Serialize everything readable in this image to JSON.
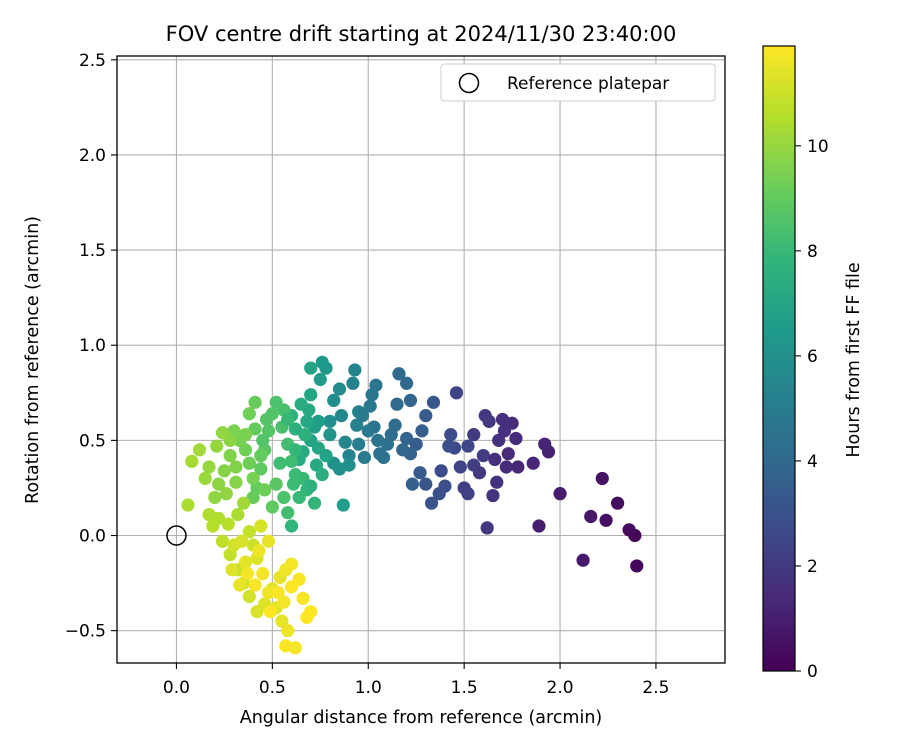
{
  "chart_data": {
    "type": "scatter",
    "title": "FOV centre drift starting at 2024/11/30 23:40:00",
    "xlabel": "Angular distance from reference (arcmin)",
    "ylabel": "Rotation from reference (arcmin)",
    "xlim": [
      -0.31,
      2.86
    ],
    "ylim": [
      -0.67,
      2.52
    ],
    "xticks": [
      "0.0",
      "0.5",
      "1.0",
      "1.5",
      "2.0",
      "2.5"
    ],
    "yticks": [
      "−0.5",
      "0.0",
      "0.5",
      "1.0",
      "1.5",
      "2.0",
      "2.5"
    ],
    "grid": true,
    "legend": {
      "position": "top-right",
      "entries": [
        "Reference platepar"
      ]
    },
    "reference_point": {
      "label": "Reference platepar",
      "x": 0.0,
      "y": 0.0
    },
    "colorbar": {
      "label": "Hours from first FF file",
      "colormap": "viridis",
      "range": [
        0,
        11.9
      ],
      "ticks": [
        "0",
        "2",
        "4",
        "6",
        "8",
        "10"
      ]
    },
    "series": [
      {
        "value_label": "Hours from first FF file",
        "points": [
          {
            "x": 2.39,
            "y": 0.0,
            "c": 0.1
          },
          {
            "x": 2.4,
            "y": -0.16,
            "c": 0.2
          },
          {
            "x": 2.36,
            "y": 0.03,
            "c": 0.3
          },
          {
            "x": 2.3,
            "y": 0.17,
            "c": 0.4
          },
          {
            "x": 2.24,
            "y": 0.08,
            "c": 0.5
          },
          {
            "x": 2.22,
            "y": 0.3,
            "c": 0.6
          },
          {
            "x": 2.16,
            "y": 0.1,
            "c": 0.7
          },
          {
            "x": 2.12,
            "y": -0.13,
            "c": 0.8
          },
          {
            "x": 2.0,
            "y": 0.22,
            "c": 0.9
          },
          {
            "x": 1.89,
            "y": 0.05,
            "c": 1.0
          },
          {
            "x": 1.94,
            "y": 0.44,
            "c": 1.1
          },
          {
            "x": 1.92,
            "y": 0.48,
            "c": 1.2
          },
          {
            "x": 1.86,
            "y": 0.38,
            "c": 1.3
          },
          {
            "x": 1.77,
            "y": 0.51,
            "c": 1.4
          },
          {
            "x": 1.73,
            "y": 0.43,
            "c": 1.4
          },
          {
            "x": 1.75,
            "y": 0.59,
            "c": 1.5
          },
          {
            "x": 1.7,
            "y": 0.61,
            "c": 1.6
          },
          {
            "x": 1.68,
            "y": 0.5,
            "c": 1.7
          },
          {
            "x": 1.67,
            "y": 0.28,
            "c": 1.7
          },
          {
            "x": 1.65,
            "y": 0.21,
            "c": 1.8
          },
          {
            "x": 1.62,
            "y": 0.04,
            "c": 1.9
          },
          {
            "x": 1.63,
            "y": 0.6,
            "c": 2.0
          },
          {
            "x": 1.61,
            "y": 0.63,
            "c": 2.0
          },
          {
            "x": 1.6,
            "y": 0.42,
            "c": 2.1
          },
          {
            "x": 1.55,
            "y": 0.37,
            "c": 2.2
          },
          {
            "x": 1.52,
            "y": 0.22,
            "c": 2.3
          },
          {
            "x": 1.5,
            "y": 0.25,
            "c": 2.3
          },
          {
            "x": 1.48,
            "y": 0.36,
            "c": 2.4
          },
          {
            "x": 1.46,
            "y": 0.75,
            "c": 2.5
          },
          {
            "x": 1.52,
            "y": 0.47,
            "c": 2.6
          },
          {
            "x": 1.45,
            "y": 0.46,
            "c": 2.7
          },
          {
            "x": 1.43,
            "y": 0.53,
            "c": 2.8
          },
          {
            "x": 1.42,
            "y": 0.47,
            "c": 2.9
          },
          {
            "x": 1.4,
            "y": 0.26,
            "c": 2.9
          },
          {
            "x": 1.37,
            "y": 0.22,
            "c": 3.0
          },
          {
            "x": 1.33,
            "y": 0.17,
            "c": 3.1
          },
          {
            "x": 1.3,
            "y": 0.27,
            "c": 3.2
          },
          {
            "x": 1.34,
            "y": 0.7,
            "c": 3.3
          },
          {
            "x": 1.3,
            "y": 0.63,
            "c": 3.4
          },
          {
            "x": 1.28,
            "y": 0.55,
            "c": 3.5
          },
          {
            "x": 1.25,
            "y": 0.48,
            "c": 3.5
          },
          {
            "x": 1.23,
            "y": 0.27,
            "c": 3.6
          },
          {
            "x": 1.22,
            "y": 0.43,
            "c": 3.7
          },
          {
            "x": 1.2,
            "y": 0.51,
            "c": 3.8
          },
          {
            "x": 1.22,
            "y": 0.71,
            "c": 3.9
          },
          {
            "x": 1.2,
            "y": 0.8,
            "c": 4.0
          },
          {
            "x": 1.16,
            "y": 0.85,
            "c": 4.1
          },
          {
            "x": 1.15,
            "y": 0.69,
            "c": 4.1
          },
          {
            "x": 1.14,
            "y": 0.58,
            "c": 4.2
          },
          {
            "x": 1.12,
            "y": 0.53,
            "c": 4.3
          },
          {
            "x": 1.1,
            "y": 0.48,
            "c": 4.4
          },
          {
            "x": 1.08,
            "y": 0.41,
            "c": 4.5
          },
          {
            "x": 1.05,
            "y": 0.5,
            "c": 4.6
          },
          {
            "x": 1.03,
            "y": 0.57,
            "c": 4.6
          },
          {
            "x": 1.04,
            "y": 0.79,
            "c": 4.7
          },
          {
            "x": 1.02,
            "y": 0.74,
            "c": 4.8
          },
          {
            "x": 1.0,
            "y": 0.55,
            "c": 4.9
          },
          {
            "x": 0.98,
            "y": 0.41,
            "c": 5.0
          },
          {
            "x": 0.95,
            "y": 0.48,
            "c": 5.1
          },
          {
            "x": 0.95,
            "y": 0.65,
            "c": 5.2
          },
          {
            "x": 0.92,
            "y": 0.8,
            "c": 5.3
          },
          {
            "x": 0.93,
            "y": 0.87,
            "c": 5.4
          },
          {
            "x": 0.9,
            "y": 0.42,
            "c": 5.4
          },
          {
            "x": 0.88,
            "y": 0.49,
            "c": 5.5
          },
          {
            "x": 0.86,
            "y": 0.63,
            "c": 5.6
          },
          {
            "x": 0.85,
            "y": 0.77,
            "c": 5.7
          },
          {
            "x": 0.82,
            "y": 0.71,
            "c": 5.8
          },
          {
            "x": 0.8,
            "y": 0.6,
            "c": 5.9
          },
          {
            "x": 0.85,
            "y": 0.35,
            "c": 6.0
          },
          {
            "x": 0.82,
            "y": 0.38,
            "c": 6.1
          },
          {
            "x": 0.8,
            "y": 0.53,
            "c": 6.2
          },
          {
            "x": 0.78,
            "y": 0.88,
            "c": 6.3
          },
          {
            "x": 0.76,
            "y": 0.91,
            "c": 6.4
          },
          {
            "x": 0.75,
            "y": 0.82,
            "c": 6.5
          },
          {
            "x": 0.74,
            "y": 0.6,
            "c": 6.6
          },
          {
            "x": 0.72,
            "y": 0.57,
            "c": 6.7
          },
          {
            "x": 0.7,
            "y": 0.5,
            "c": 6.8
          },
          {
            "x": 0.7,
            "y": 0.88,
            "c": 6.9
          },
          {
            "x": 0.7,
            "y": 0.74,
            "c": 7.0
          },
          {
            "x": 0.68,
            "y": 0.6,
            "c": 7.1
          },
          {
            "x": 0.66,
            "y": 0.44,
            "c": 7.2
          },
          {
            "x": 0.64,
            "y": 0.4,
            "c": 7.3
          },
          {
            "x": 0.65,
            "y": 0.69,
            "c": 7.4
          },
          {
            "x": 0.62,
            "y": 0.56,
            "c": 7.5
          },
          {
            "x": 0.6,
            "y": 0.63,
            "c": 7.6
          },
          {
            "x": 0.6,
            "y": 0.05,
            "c": 7.7
          },
          {
            "x": 0.72,
            "y": 0.17,
            "c": 7.8
          },
          {
            "x": 0.68,
            "y": 0.24,
            "c": 7.9
          },
          {
            "x": 0.66,
            "y": 0.3,
            "c": 8.0
          },
          {
            "x": 0.62,
            "y": 0.32,
            "c": 8.1
          },
          {
            "x": 0.6,
            "y": 0.39,
            "c": 8.2
          },
          {
            "x": 0.58,
            "y": 0.48,
            "c": 8.3
          },
          {
            "x": 0.56,
            "y": 0.66,
            "c": 8.4
          },
          {
            "x": 0.52,
            "y": 0.7,
            "c": 8.5
          },
          {
            "x": 0.5,
            "y": 0.64,
            "c": 8.6
          },
          {
            "x": 0.48,
            "y": 0.55,
            "c": 8.7
          },
          {
            "x": 0.46,
            "y": 0.45,
            "c": 8.8
          },
          {
            "x": 0.44,
            "y": 0.35,
            "c": 8.9
          },
          {
            "x": 0.42,
            "y": 0.25,
            "c": 9.0
          },
          {
            "x": 0.4,
            "y": 0.2,
            "c": 9.1
          },
          {
            "x": 0.38,
            "y": 0.38,
            "c": 9.2
          },
          {
            "x": 0.36,
            "y": 0.45,
            "c": 9.3
          },
          {
            "x": 0.33,
            "y": 0.5,
            "c": 9.4
          },
          {
            "x": 0.3,
            "y": 0.55,
            "c": 9.5
          },
          {
            "x": 0.28,
            "y": 0.42,
            "c": 9.6
          },
          {
            "x": 0.25,
            "y": 0.34,
            "c": 9.7
          },
          {
            "x": 0.22,
            "y": 0.27,
            "c": 9.8
          },
          {
            "x": 0.2,
            "y": 0.2,
            "c": 9.9
          },
          {
            "x": 0.17,
            "y": 0.36,
            "c": 10.0
          },
          {
            "x": 0.15,
            "y": 0.3,
            "c": 10.1
          },
          {
            "x": 0.12,
            "y": 0.45,
            "c": 10.2
          },
          {
            "x": 0.08,
            "y": 0.39,
            "c": 10.3
          },
          {
            "x": 0.06,
            "y": 0.16,
            "c": 10.4
          },
          {
            "x": 0.17,
            "y": 0.11,
            "c": 10.5
          },
          {
            "x": 0.19,
            "y": 0.05,
            "c": 10.6
          },
          {
            "x": 0.24,
            "y": -0.03,
            "c": 10.7
          },
          {
            "x": 0.28,
            "y": -0.1,
            "c": 10.8
          },
          {
            "x": 0.32,
            "y": -0.18,
            "c": 10.9
          },
          {
            "x": 0.35,
            "y": -0.25,
            "c": 11.0
          },
          {
            "x": 0.38,
            "y": -0.32,
            "c": 11.1
          },
          {
            "x": 0.42,
            "y": -0.4,
            "c": 11.2
          },
          {
            "x": 0.46,
            "y": -0.36,
            "c": 11.3
          },
          {
            "x": 0.5,
            "y": -0.28,
            "c": 11.4
          },
          {
            "x": 0.54,
            "y": -0.22,
            "c": 11.5
          },
          {
            "x": 0.57,
            "y": -0.18,
            "c": 11.6
          },
          {
            "x": 0.6,
            "y": -0.15,
            "c": 11.7
          },
          {
            "x": 0.64,
            "y": -0.23,
            "c": 11.8
          },
          {
            "x": 0.7,
            "y": -0.4,
            "c": 11.9
          },
          {
            "x": 0.68,
            "y": -0.43,
            "c": 11.9
          },
          {
            "x": 0.66,
            "y": -0.33,
            "c": 11.8
          },
          {
            "x": 0.62,
            "y": -0.59,
            "c": 11.7
          },
          {
            "x": 0.57,
            "y": -0.58,
            "c": 11.8
          },
          {
            "x": 0.58,
            "y": -0.5,
            "c": 11.6
          },
          {
            "x": 0.55,
            "y": -0.45,
            "c": 11.5
          },
          {
            "x": 0.52,
            "y": -0.38,
            "c": 11.4
          },
          {
            "x": 0.48,
            "y": -0.3,
            "c": 11.6
          },
          {
            "x": 0.45,
            "y": -0.2,
            "c": 11.7
          },
          {
            "x": 0.42,
            "y": -0.12,
            "c": 11.3
          },
          {
            "x": 0.4,
            "y": -0.05,
            "c": 11.0
          },
          {
            "x": 0.38,
            "y": 0.02,
            "c": 10.8
          },
          {
            "x": 0.44,
            "y": 0.05,
            "c": 11.2
          },
          {
            "x": 0.48,
            "y": -0.03,
            "c": 11.5
          },
          {
            "x": 0.36,
            "y": -0.14,
            "c": 11.4
          },
          {
            "x": 0.3,
            "y": -0.05,
            "c": 11.1
          },
          {
            "x": 0.27,
            "y": 0.06,
            "c": 10.6
          },
          {
            "x": 0.32,
            "y": 0.11,
            "c": 10.4
          },
          {
            "x": 0.35,
            "y": 0.17,
            "c": 10.2
          },
          {
            "x": 0.26,
            "y": 0.22,
            "c": 9.9
          },
          {
            "x": 0.31,
            "y": 0.28,
            "c": 9.7
          },
          {
            "x": 0.4,
            "y": 0.3,
            "c": 9.4
          },
          {
            "x": 0.46,
            "y": 0.24,
            "c": 9.2
          },
          {
            "x": 0.52,
            "y": 0.27,
            "c": 8.8
          },
          {
            "x": 0.56,
            "y": 0.2,
            "c": 8.5
          },
          {
            "x": 0.58,
            "y": 0.12,
            "c": 8.3
          },
          {
            "x": 0.5,
            "y": 0.15,
            "c": 8.9
          },
          {
            "x": 0.45,
            "y": 0.5,
            "c": 8.6
          },
          {
            "x": 0.41,
            "y": 0.56,
            "c": 9.0
          },
          {
            "x": 0.38,
            "y": 0.64,
            "c": 9.3
          },
          {
            "x": 0.41,
            "y": 0.7,
            "c": 9.1
          },
          {
            "x": 0.36,
            "y": 0.53,
            "c": 9.5
          },
          {
            "x": 0.28,
            "y": 0.5,
            "c": 9.8
          },
          {
            "x": 0.21,
            "y": 0.47,
            "c": 10.0
          },
          {
            "x": 0.24,
            "y": 0.54,
            "c": 9.9
          },
          {
            "x": 0.54,
            "y": 0.38,
            "c": 8.2
          },
          {
            "x": 0.62,
            "y": 0.45,
            "c": 7.9
          },
          {
            "x": 0.67,
            "y": 0.53,
            "c": 7.5
          },
          {
            "x": 0.74,
            "y": 0.46,
            "c": 7.0
          },
          {
            "x": 0.78,
            "y": 0.42,
            "c": 6.8
          },
          {
            "x": 0.73,
            "y": 0.37,
            "c": 7.2
          },
          {
            "x": 0.76,
            "y": 0.32,
            "c": 7.4
          },
          {
            "x": 0.7,
            "y": 0.26,
            "c": 7.6
          },
          {
            "x": 0.64,
            "y": 0.2,
            "c": 8.0
          },
          {
            "x": 0.61,
            "y": 0.27,
            "c": 8.1
          },
          {
            "x": 0.87,
            "y": 0.16,
            "c": 6.6
          },
          {
            "x": 0.9,
            "y": 0.37,
            "c": 5.9
          },
          {
            "x": 0.94,
            "y": 0.58,
            "c": 5.2
          },
          {
            "x": 0.97,
            "y": 0.63,
            "c": 5.0
          },
          {
            "x": 1.01,
            "y": 0.68,
            "c": 4.8
          },
          {
            "x": 1.06,
            "y": 0.43,
            "c": 4.4
          },
          {
            "x": 1.18,
            "y": 0.45,
            "c": 3.9
          },
          {
            "x": 1.27,
            "y": 0.33,
            "c": 3.4
          },
          {
            "x": 1.38,
            "y": 0.34,
            "c": 2.8
          },
          {
            "x": 1.55,
            "y": 0.53,
            "c": 2.1
          },
          {
            "x": 1.58,
            "y": 0.33,
            "c": 2.0
          },
          {
            "x": 1.66,
            "y": 0.4,
            "c": 1.6
          },
          {
            "x": 1.72,
            "y": 0.36,
            "c": 1.5
          },
          {
            "x": 1.78,
            "y": 0.36,
            "c": 1.3
          },
          {
            "x": 1.71,
            "y": 0.55,
            "c": 1.7
          },
          {
            "x": 0.29,
            "y": -0.18,
            "c": 11.3
          },
          {
            "x": 0.33,
            "y": -0.26,
            "c": 11.5
          },
          {
            "x": 0.37,
            "y": -0.2,
            "c": 11.7
          },
          {
            "x": 0.41,
            "y": -0.26,
            "c": 11.8
          },
          {
            "x": 0.49,
            "y": -0.4,
            "c": 11.9
          },
          {
            "x": 0.53,
            "y": -0.3,
            "c": 11.8
          },
          {
            "x": 0.56,
            "y": -0.35,
            "c": 11.7
          },
          {
            "x": 0.6,
            "y": -0.27,
            "c": 11.9
          },
          {
            "x": 0.43,
            "y": -0.08,
            "c": 11.6
          },
          {
            "x": 0.34,
            "y": -0.03,
            "c": 11.2
          },
          {
            "x": 0.22,
            "y": 0.09,
            "c": 10.5
          },
          {
            "x": 0.31,
            "y": 0.36,
            "c": 9.6
          },
          {
            "x": 0.44,
            "y": 0.42,
            "c": 9.0
          },
          {
            "x": 0.47,
            "y": 0.61,
            "c": 8.7
          },
          {
            "x": 0.55,
            "y": 0.57,
            "c": 8.4
          },
          {
            "x": 0.58,
            "y": 0.61,
            "c": 8.0
          },
          {
            "x": 0.69,
            "y": 0.66,
            "c": 7.2
          }
        ]
      }
    ]
  }
}
